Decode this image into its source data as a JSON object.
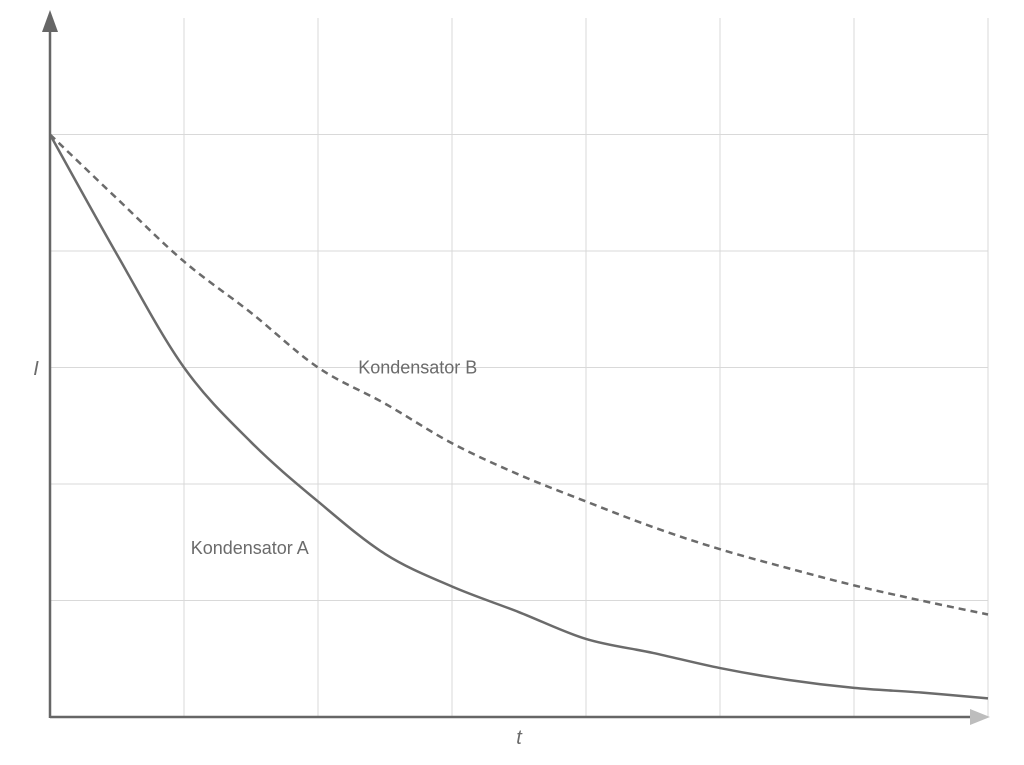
{
  "chart_data": {
    "type": "line",
    "xlabel": "t",
    "ylabel": "I",
    "xlim": [
      0,
      7
    ],
    "ylim": [
      0,
      6
    ],
    "grid": true,
    "x_gridlines": [
      1,
      2,
      3,
      4,
      5,
      6,
      7
    ],
    "y_gridlines": [
      1,
      2,
      3,
      4,
      5
    ],
    "series": [
      {
        "name": "Kondensator A",
        "style": "solid",
        "color": "#6b6b6b",
        "x": [
          0,
          0.5,
          1,
          1.5,
          2,
          2.5,
          3,
          3.5,
          4,
          4.5,
          5,
          5.5,
          6,
          6.5,
          7
        ],
        "y": [
          5.0,
          3.97,
          3.0,
          2.36,
          1.85,
          1.4,
          1.12,
          0.9,
          0.67,
          0.55,
          0.42,
          0.32,
          0.25,
          0.21,
          0.16
        ]
      },
      {
        "name": "Kondensator B",
        "style": "dashed",
        "color": "#6b6b6b",
        "x": [
          0,
          0.5,
          1,
          1.5,
          2,
          2.5,
          3,
          3.5,
          4,
          4.5,
          5,
          5.5,
          6,
          6.5,
          7
        ],
        "y": [
          5.0,
          4.45,
          3.91,
          3.47,
          3.0,
          2.69,
          2.35,
          2.08,
          1.85,
          1.63,
          1.44,
          1.28,
          1.13,
          1.0,
          0.88
        ]
      }
    ],
    "annotations": [
      {
        "text": "Kondensator B",
        "x": 2.3,
        "y": 3.0
      },
      {
        "text": "Kondensator A",
        "x": 1.05,
        "y": 1.45
      }
    ]
  }
}
